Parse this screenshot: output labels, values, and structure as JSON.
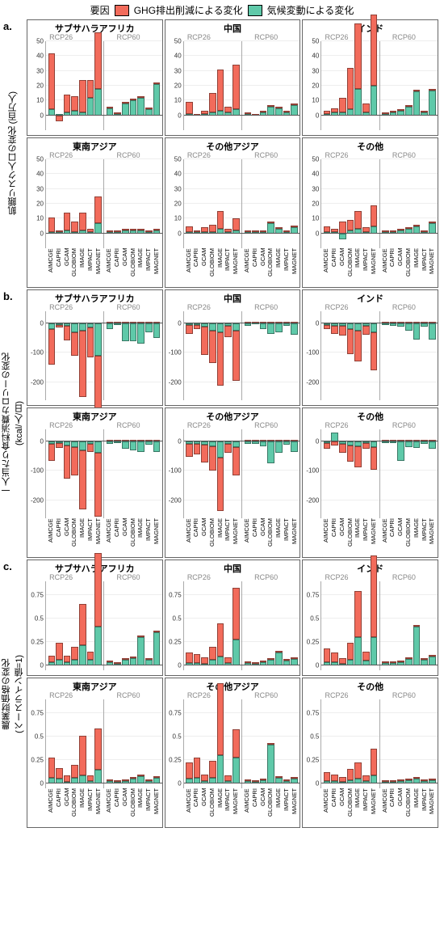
{
  "legend": {
    "title": "要因",
    "items": [
      {
        "label": "GHG排出削減による変化",
        "color": "#f26b5b"
      },
      {
        "label": "気候変動による変化",
        "color": "#5fc9a9"
      }
    ]
  },
  "colors": {
    "ghg": "#f26b5b",
    "climate": "#5fc9a9",
    "grid": "#eeeeee",
    "axis": "#aaaaaa",
    "zero": "#555555"
  },
  "models": [
    "AIMCGE",
    "CAPRI",
    "GCAM",
    "GLOBIOM",
    "IMAGE",
    "IMPACT",
    "MAGNET"
  ],
  "scenarios": [
    "RCP26",
    "RCP60"
  ],
  "regions_row1": [
    "サブサハラアフリカ",
    "中国",
    "インド"
  ],
  "regions_row2": [
    "東南アジア",
    "その他アジア",
    "その他"
  ],
  "sections": {
    "a": {
      "label": "a.",
      "ytitle": "飢餓リスク人口の変化 (百万人)",
      "ylim": [
        -10,
        50
      ],
      "yticks": [
        0,
        10,
        20,
        30,
        40,
        50
      ],
      "panels": [
        {
          "title": "サブサハラアフリカ",
          "rcp26": {
            "ghg": [
              38,
              -4,
              12,
              10,
              22,
              12,
              38
            ],
            "cl": [
              4,
              1,
              2,
              3,
              2,
              12,
              18
            ]
          },
          "rcp60": {
            "ghg": [
              0,
              0,
              0,
              0,
              0,
              0,
              0
            ],
            "cl": [
              5,
              1,
              8,
              10,
              12,
              4,
              21
            ]
          }
        },
        {
          "title": "中国",
          "rcp26": {
            "ghg": [
              8,
              0,
              2,
              13,
              28,
              4,
              30
            ],
            "cl": [
              1,
              0,
              1,
              2,
              3,
              2,
              4
            ]
          },
          "rcp60": {
            "ghg": [
              0,
              0,
              0,
              0,
              0,
              0,
              0
            ],
            "cl": [
              1,
              0,
              2,
              6,
              5,
              2,
              7
            ]
          }
        },
        {
          "title": "インド",
          "rcp26": {
            "ghg": [
              2,
              3,
              10,
              28,
              44,
              6,
              48
            ],
            "cl": [
              1,
              2,
              2,
              4,
              18,
              2,
              20
            ]
          },
          "rcp60": {
            "ghg": [
              0,
              0,
              0,
              0,
              0,
              0,
              0
            ],
            "cl": [
              1,
              2,
              3,
              6,
              16,
              2,
              17
            ]
          }
        },
        {
          "title": "東南アジア",
          "rcp26": {
            "ghg": [
              10,
              1,
              12,
              7,
              12,
              2,
              18
            ],
            "cl": [
              1,
              1,
              2,
              1,
              2,
              1,
              7
            ]
          },
          "rcp60": {
            "ghg": [
              0,
              0,
              0,
              0,
              0,
              0,
              0
            ],
            "cl": [
              1,
              1,
              2,
              2,
              2,
              1,
              2
            ]
          }
        },
        {
          "title": "その他アジア",
          "rcp26": {
            "ghg": [
              4,
              1,
              3,
              5,
              12,
              2,
              8
            ],
            "cl": [
              1,
              1,
              1,
              1,
              3,
              1,
              2
            ]
          },
          "rcp60": {
            "ghg": [
              0,
              0,
              0,
              0,
              0,
              0,
              0
            ],
            "cl": [
              1,
              1,
              1,
              7,
              3,
              1,
              4
            ]
          }
        },
        {
          "title": "その他",
          "rcp26": {
            "ghg": [
              4,
              2,
              8,
              7,
              12,
              3,
              14
            ],
            "cl": [
              1,
              1,
              -4,
              2,
              3,
              1,
              5
            ]
          },
          "rcp60": {
            "ghg": [
              0,
              0,
              0,
              0,
              0,
              0,
              0
            ],
            "cl": [
              1,
              1,
              2,
              3,
              5,
              1,
              7
            ]
          }
        }
      ]
    },
    "b": {
      "label": "b.",
      "ytitle": "一人当たり食料消費カロリーの変化\n(kcal/人/日)",
      "ylim": [
        -260,
        40
      ],
      "yticks": [
        0,
        -100,
        -200
      ],
      "panels": [
        {
          "title": "サブサハラアフリカ",
          "rcp26": {
            "ghg": [
              -120,
              -10,
              -50,
              -80,
              -225,
              -100,
              -210
            ],
            "cl": [
              -20,
              -5,
              -8,
              -30,
              -25,
              -15,
              -110
            ]
          },
          "rcp60": {
            "ghg": [
              0,
              0,
              0,
              0,
              0,
              0,
              0
            ],
            "cl": [
              -20,
              -5,
              -60,
              -60,
              -70,
              -30,
              -50
            ]
          }
        },
        {
          "title": "中国",
          "rcp26": {
            "ghg": [
              -30,
              -15,
              -95,
              -110,
              -180,
              -40,
              -170
            ],
            "cl": [
              -5,
              -5,
              -12,
              -25,
              -30,
              -8,
              -25
            ]
          },
          "rcp60": {
            "ghg": [
              0,
              0,
              0,
              0,
              0,
              0,
              0
            ],
            "cl": [
              -8,
              -3,
              -20,
              -35,
              -30,
              -10,
              -40
            ]
          }
        },
        {
          "title": "インド",
          "rcp26": {
            "ghg": [
              -15,
              -25,
              -35,
              -85,
              -105,
              -30,
              -130
            ],
            "cl": [
              -5,
              -10,
              -8,
              -20,
              -25,
              -10,
              -30
            ]
          },
          "rcp60": {
            "ghg": [
              0,
              0,
              0,
              0,
              0,
              0,
              0
            ],
            "cl": [
              -5,
              -8,
              -12,
              -25,
              -55,
              -12,
              -55
            ]
          }
        },
        {
          "title": "東南アジア",
          "rcp26": {
            "ghg": [
              -55,
              -18,
              -110,
              -95,
              -200,
              -25,
              -215
            ],
            "cl": [
              -10,
              -5,
              -15,
              -20,
              -30,
              -10,
              -40
            ]
          },
          "rcp60": {
            "ghg": [
              0,
              0,
              0,
              0,
              0,
              0,
              0
            ],
            "cl": [
              -10,
              -5,
              -25,
              -30,
              -35,
              -12,
              -35
            ]
          }
        },
        {
          "title": "その他アジア",
          "rcp26": {
            "ghg": [
              -45,
              -35,
              -60,
              -80,
              -180,
              -30,
              -95
            ],
            "cl": [
              -8,
              -10,
              -12,
              -18,
              -55,
              -8,
              -20
            ]
          },
          "rcp60": {
            "ghg": [
              0,
              0,
              0,
              0,
              0,
              0,
              0
            ],
            "cl": [
              -10,
              -8,
              -18,
              -75,
              -40,
              -12,
              -35
            ]
          }
        },
        {
          "title": "その他",
          "rcp26": {
            "ghg": [
              -20,
              -15,
              -30,
              -55,
              -70,
              -20,
              -75
            ],
            "cl": [
              -5,
              30,
              -8,
              -15,
              -18,
              -6,
              -20
            ]
          },
          "rcp60": {
            "ghg": [
              0,
              0,
              0,
              0,
              0,
              0,
              0
            ],
            "cl": [
              -5,
              -5,
              -65,
              -20,
              -22,
              -8,
              -25
            ]
          }
        }
      ]
    },
    "c": {
      "label": "c.",
      "ytitle": "農業財価格の変化\n(ベースライン値=1)",
      "ylim": [
        -0.05,
        0.9
      ],
      "yticks": [
        0.0,
        0.25,
        0.5,
        0.75
      ],
      "panels": [
        {
          "title": "サブサハラアフリカ",
          "rcp26": {
            "ghg": [
              0.07,
              0.18,
              0.07,
              0.14,
              0.44,
              0.09,
              0.78
            ],
            "cl": [
              0.04,
              0.06,
              0.04,
              0.06,
              0.22,
              0.06,
              0.42
            ]
          },
          "rcp60": {
            "ghg": [
              0,
              0,
              0,
              0,
              0,
              0,
              0
            ],
            "cl": [
              0.04,
              0.02,
              0.06,
              0.08,
              0.3,
              0.06,
              0.36
            ]
          }
        },
        {
          "title": "中国",
          "rcp26": {
            "ghg": [
              0.11,
              0.09,
              0.07,
              0.14,
              0.35,
              0.06,
              0.55
            ],
            "cl": [
              0.03,
              0.03,
              0.02,
              0.06,
              0.1,
              0.03,
              0.28
            ]
          },
          "rcp60": {
            "ghg": [
              0,
              0,
              0,
              0,
              0,
              0,
              0
            ],
            "cl": [
              0.03,
              0.02,
              0.04,
              0.06,
              0.14,
              0.05,
              0.07
            ]
          }
        },
        {
          "title": "インド",
          "rcp26": {
            "ghg": [
              0.14,
              0.1,
              0.06,
              0.18,
              0.5,
              0.1,
              0.88
            ],
            "cl": [
              0.04,
              0.04,
              0.02,
              0.06,
              0.3,
              0.05,
              0.3
            ]
          },
          "rcp60": {
            "ghg": [
              0,
              0,
              0,
              0,
              0,
              0,
              0
            ],
            "cl": [
              0.03,
              0.03,
              0.04,
              0.07,
              0.42,
              0.06,
              0.1
            ]
          }
        },
        {
          "title": "東南アジア",
          "rcp26": {
            "ghg": [
              0.22,
              0.12,
              0.07,
              0.14,
              0.42,
              0.06,
              0.44
            ],
            "cl": [
              0.06,
              0.05,
              0.02,
              0.06,
              0.09,
              0.03,
              0.15
            ]
          },
          "rcp60": {
            "ghg": [
              0,
              0,
              0,
              0,
              0,
              0,
              0
            ],
            "cl": [
              0.03,
              0.02,
              0.03,
              0.05,
              0.08,
              0.03,
              0.06
            ]
          }
        },
        {
          "title": "その他アジア",
          "rcp26": {
            "ghg": [
              0.18,
              0.22,
              0.07,
              0.18,
              0.77,
              0.06,
              0.3
            ],
            "cl": [
              0.05,
              0.06,
              0.03,
              0.06,
              0.3,
              0.03,
              0.28
            ]
          },
          "rcp60": {
            "ghg": [
              0,
              0,
              0,
              0,
              0,
              0,
              0
            ],
            "cl": [
              0.03,
              0.02,
              0.04,
              0.42,
              0.06,
              0.03,
              0.05
            ]
          }
        },
        {
          "title": "その他",
          "rcp26": {
            "ghg": [
              0.09,
              0.07,
              0.05,
              0.12,
              0.18,
              0.06,
              0.28
            ],
            "cl": [
              0.03,
              0.03,
              0.02,
              0.04,
              0.05,
              0.03,
              0.09
            ]
          },
          "rcp60": {
            "ghg": [
              0,
              0,
              0,
              0,
              0,
              0,
              0
            ],
            "cl": [
              0.02,
              0.02,
              0.03,
              0.04,
              0.05,
              0.03,
              0.04
            ]
          }
        }
      ]
    }
  }
}
